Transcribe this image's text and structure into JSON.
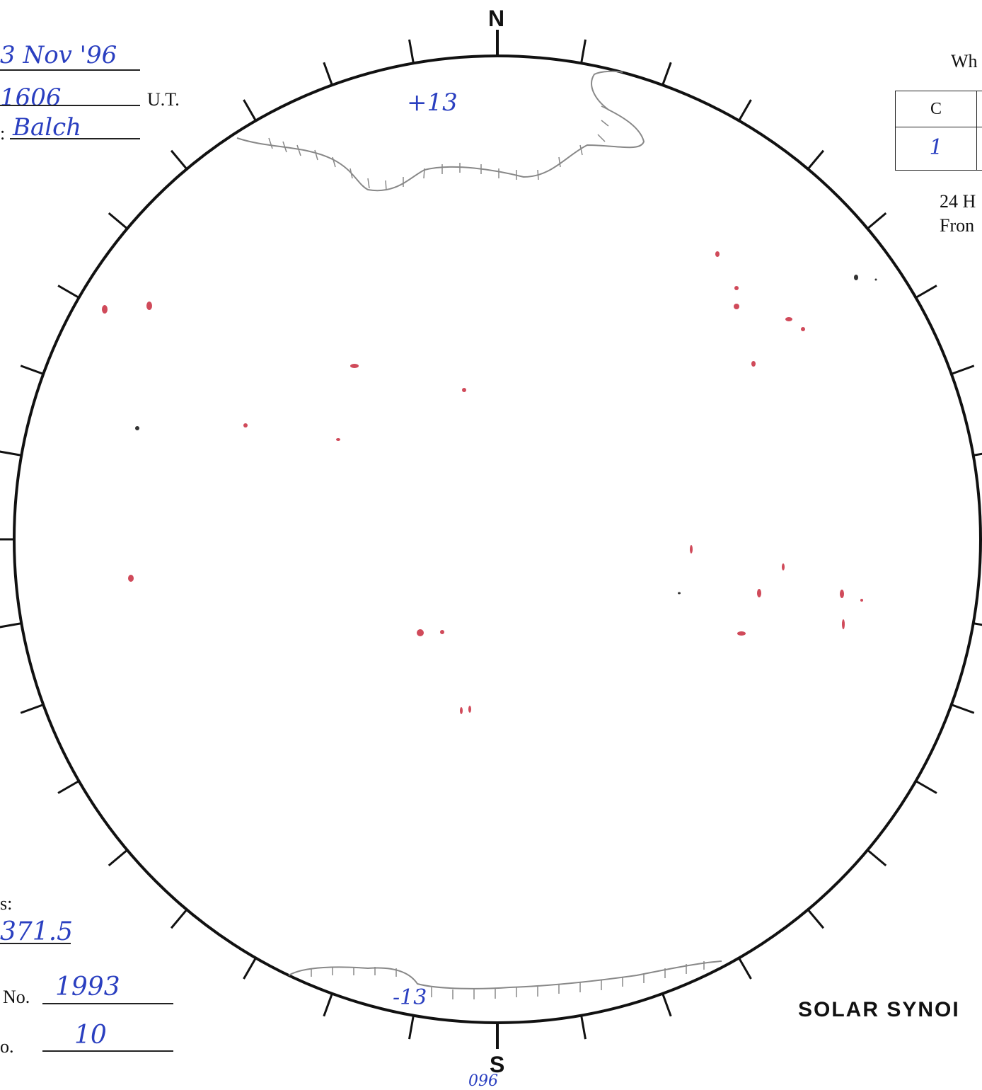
{
  "header_left": {
    "date_value": "3 Nov '96",
    "time_value": "1606",
    "time_unit": "U.T.",
    "observer_colon": ":",
    "observer_value": "Balch"
  },
  "compass": {
    "north": "N",
    "south": "S",
    "south_note": "096"
  },
  "disk_labels": {
    "top_latitude": "+13",
    "bottom_latitude": "-13"
  },
  "top_right": {
    "heading": "Wh",
    "table_header": [
      "C",
      ""
    ],
    "table_row": [
      "1",
      ""
    ],
    "line1": "24 H",
    "line2": "Fron"
  },
  "footer_left": {
    "label_s": "s:",
    "value_s": "371.5",
    "label_no": "No.",
    "value_no": "1993",
    "label_o": "o.",
    "value_o": "10"
  },
  "footer_right": {
    "title": "SOLAR SYNOI"
  },
  "colors": {
    "ink_blue": "#2a3fc0",
    "pencil_gray": "#7a7a7a",
    "spot_red": "#d04a5a",
    "frame": "#111111"
  }
}
